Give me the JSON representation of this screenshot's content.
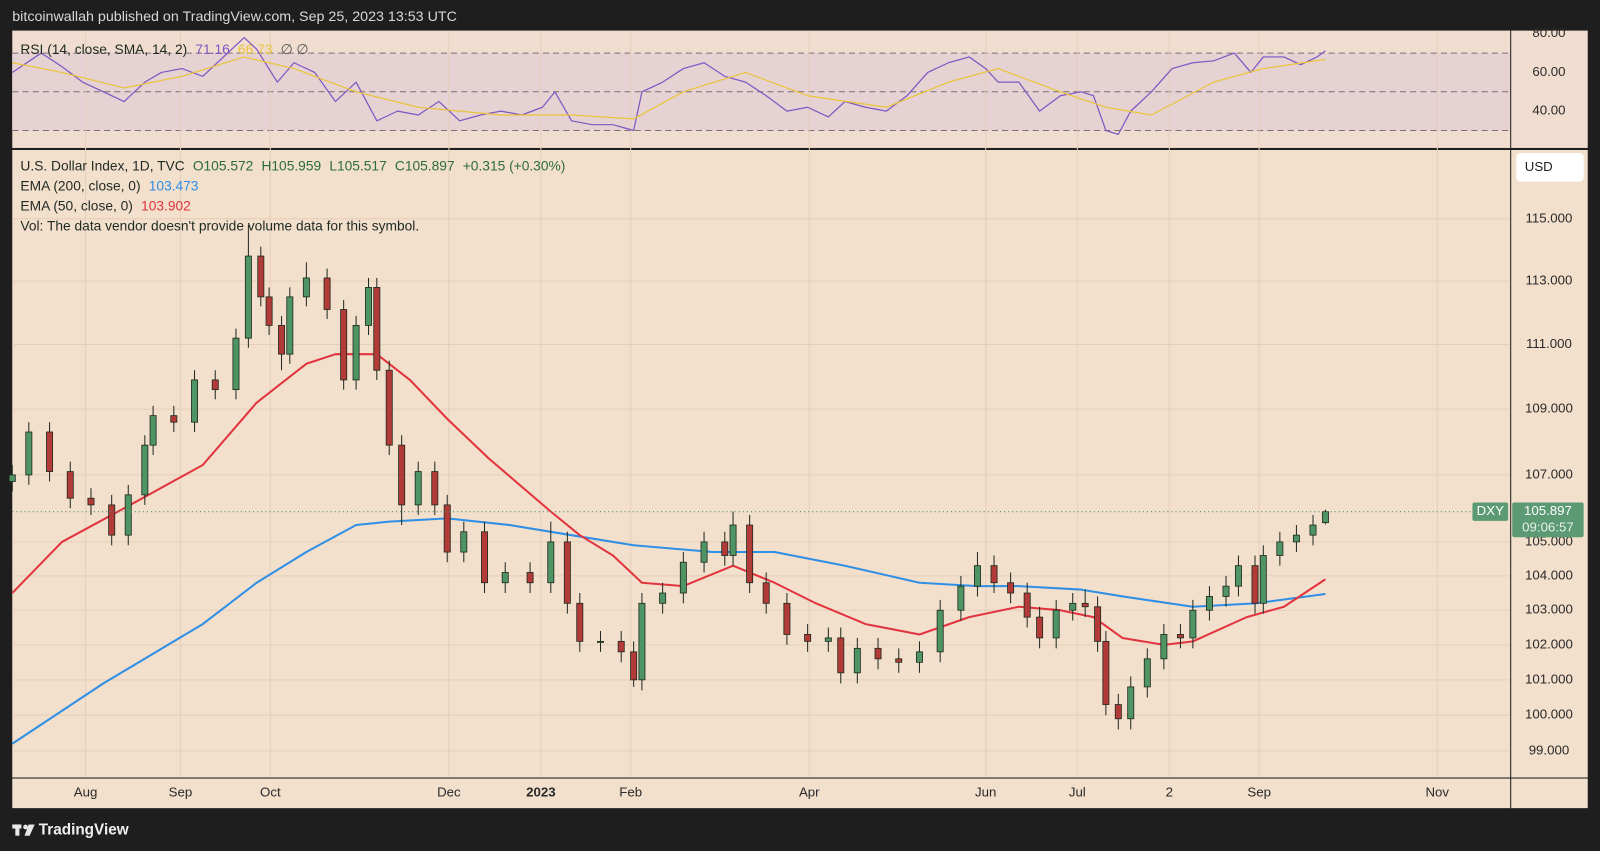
{
  "header": {
    "text": "bitcoinwallah published on TradingView.com, Sep 25, 2023 13:53 UTC"
  },
  "footer": {
    "brand": "TradingView"
  },
  "chart_data": [
    {
      "type": "line",
      "legend_title": "RSI (14, close, SMA, 14, 2)",
      "extra_label": "∅ ∅",
      "ylim": [
        21,
        81.6
      ],
      "yticks": [
        {
          "value": 40,
          "label": "40.00"
        },
        {
          "value": 60,
          "label": "60.00"
        },
        {
          "value": 80,
          "label": "80.00"
        }
      ],
      "hlines": [
        70,
        50,
        30
      ],
      "band_color": "#e6d1d3",
      "xlim": [
        0,
        361.6
      ],
      "series": [
        {
          "value_label": "71.16",
          "color": "#7e57c2",
          "x": [
            0,
            7,
            12,
            17,
            22,
            27,
            32,
            36,
            41,
            46,
            51,
            56,
            59,
            64,
            68,
            73,
            78,
            83,
            88,
            93,
            98,
            103,
            108,
            113,
            118,
            123,
            128,
            131,
            135,
            140,
            145,
            150,
            152,
            157,
            162,
            167,
            172,
            177,
            182,
            187,
            192,
            197,
            201,
            206,
            211,
            216,
            221,
            226,
            231,
            235,
            238,
            243,
            248,
            253,
            258,
            261,
            264,
            267,
            270,
            275,
            280,
            285,
            290,
            295,
            299,
            302,
            307,
            311,
            315,
            317
          ],
          "values": [
            60,
            70,
            63,
            55,
            50,
            45,
            55,
            60,
            62,
            58,
            68,
            78,
            72,
            55,
            65,
            60,
            45,
            55,
            35,
            40,
            38,
            45,
            35,
            38,
            40,
            38,
            42,
            50,
            35,
            33,
            33,
            30,
            50,
            55,
            62,
            65,
            58,
            55,
            48,
            40,
            42,
            37,
            45,
            42,
            40,
            48,
            60,
            65,
            68,
            62,
            55,
            55,
            40,
            48,
            50,
            48,
            30,
            28,
            40,
            50,
            62,
            65,
            66,
            70,
            60,
            68,
            68,
            64,
            68,
            71.16
          ]
        },
        {
          "value_label": "66.73",
          "color": "#e9c53a",
          "x": [
            0,
            12,
            27,
            41,
            56,
            68,
            83,
            98,
            118,
            135,
            150,
            162,
            177,
            192,
            211,
            226,
            238,
            253,
            264,
            275,
            290,
            302,
            317
          ],
          "values": [
            65,
            60,
            52,
            58,
            68,
            62,
            50,
            42,
            38,
            38,
            36,
            50,
            60,
            48,
            42,
            55,
            62,
            50,
            42,
            38,
            55,
            62,
            66.73
          ]
        }
      ]
    },
    {
      "type": "candlestick",
      "title": "U.S. Dollar Index, 1D, TVC",
      "ohlc_labels": [
        "O105.572",
        "H105.959",
        "L105.517",
        "C105.897",
        "+0.315 (+0.30%)"
      ],
      "ohlc_color": "#2b6b3f",
      "note": "Vol: The data vendor doesn't provide volume data for this symbol.",
      "currency": "USD",
      "symbol": "DXY",
      "last_label": "105.897",
      "countdown": "09:06:57",
      "log_scale": true,
      "grid": true,
      "ylim": [
        98.26,
        117.25
      ],
      "yticks": [
        {
          "value": 99,
          "label": "99.000"
        },
        {
          "value": 100,
          "label": "100.000"
        },
        {
          "value": 101,
          "label": "101.000"
        },
        {
          "value": 102,
          "label": "102.000"
        },
        {
          "value": 103,
          "label": "103.000"
        },
        {
          "value": 104,
          "label": "104.000"
        },
        {
          "value": 105,
          "label": "105.000"
        },
        {
          "value": 107,
          "label": "107.000"
        },
        {
          "value": 109,
          "label": "109.000"
        },
        {
          "value": 111,
          "label": "111.000"
        },
        {
          "value": 113,
          "label": "113.000"
        },
        {
          "value": 115,
          "label": "115.000"
        }
      ],
      "xlim": [
        0,
        361.6
      ],
      "xticks": [
        {
          "value": 17.7,
          "label": "Aug"
        },
        {
          "value": 40.6,
          "label": "Sep"
        },
        {
          "value": 62.3,
          "label": "Oct"
        },
        {
          "value": 105.4,
          "label": "Dec"
        },
        {
          "value": 127.6,
          "label": "2023",
          "bold": true
        },
        {
          "value": 149.3,
          "label": "Feb"
        },
        {
          "value": 192.4,
          "label": "Apr"
        },
        {
          "value": 235,
          "label": "Jun"
        },
        {
          "value": 257.1,
          "label": "Jul"
        },
        {
          "value": 279.3,
          "label": "2"
        },
        {
          "value": 301,
          "label": "Sep"
        },
        {
          "value": 344,
          "label": "Nov"
        }
      ],
      "up_color": "#4f9564",
      "down_color": "#b23b38",
      "candles": {
        "x": [
          0,
          4,
          9,
          14,
          19,
          24,
          28,
          32,
          34,
          39,
          44,
          49,
          54,
          57,
          60,
          62,
          65,
          67,
          71,
          76,
          80,
          83,
          86,
          88,
          91,
          94,
          98,
          102,
          105,
          109,
          114,
          119,
          125,
          130,
          134,
          137,
          142,
          147,
          150,
          152,
          157,
          162,
          167,
          172,
          174,
          178,
          182,
          187,
          192,
          197,
          200,
          204,
          209,
          214,
          219,
          224,
          229,
          233,
          237,
          241,
          245,
          248,
          252,
          256,
          259,
          262,
          264,
          267,
          270,
          274,
          278,
          282,
          285,
          289,
          293,
          296,
          300,
          302,
          306,
          310,
          314,
          317
        ],
        "open": [
          106.8,
          107.0,
          108.3,
          107.1,
          106.3,
          106.1,
          105.2,
          106.4,
          107.9,
          108.8,
          108.6,
          109.9,
          109.6,
          111.2,
          113.8,
          112.5,
          111.6,
          110.7,
          112.5,
          113.1,
          112.1,
          109.9,
          111.6,
          112.8,
          110.2,
          107.9,
          106.1,
          107.1,
          106.1,
          104.7,
          105.3,
          103.8,
          104.1,
          103.8,
          105.0,
          103.2,
          102.1,
          102.1,
          101.8,
          101.0,
          103.2,
          103.5,
          104.4,
          105.0,
          104.6,
          105.5,
          103.8,
          103.2,
          102.3,
          102.1,
          102.2,
          101.2,
          101.9,
          101.6,
          101.5,
          101.8,
          103.0,
          103.7,
          104.3,
          103.8,
          103.5,
          102.8,
          102.2,
          103.0,
          103.2,
          103.1,
          102.1,
          100.3,
          99.9,
          100.8,
          101.6,
          102.3,
          102.2,
          103.0,
          103.4,
          103.7,
          104.3,
          103.2,
          104.6,
          105.0,
          105.2,
          105.572
        ],
        "high": [
          107.3,
          108.6,
          108.6,
          107.4,
          106.6,
          106.4,
          106.7,
          108.2,
          109.1,
          109.1,
          110.2,
          110.2,
          111.5,
          114.8,
          114.1,
          112.8,
          111.9,
          112.8,
          113.6,
          113.4,
          112.4,
          111.9,
          113.1,
          113.1,
          110.5,
          108.2,
          107.4,
          107.4,
          106.4,
          105.6,
          105.6,
          104.4,
          104.4,
          105.6,
          105.3,
          103.5,
          102.4,
          102.4,
          102.1,
          103.5,
          103.8,
          104.7,
          105.3,
          105.3,
          105.9,
          105.8,
          104.1,
          103.5,
          102.6,
          102.5,
          102.5,
          102.2,
          102.2,
          101.9,
          102.1,
          103.3,
          104.0,
          104.7,
          104.6,
          104.1,
          103.8,
          103.1,
          103.3,
          103.5,
          103.6,
          103.4,
          102.4,
          100.6,
          101.1,
          101.9,
          102.6,
          102.6,
          103.3,
          103.7,
          104.0,
          104.6,
          104.6,
          104.9,
          105.3,
          105.5,
          105.8,
          105.959
        ],
        "low": [
          106.5,
          106.7,
          106.8,
          106.0,
          105.8,
          104.9,
          104.9,
          106.1,
          107.6,
          108.3,
          108.3,
          109.3,
          109.3,
          110.9,
          112.2,
          111.3,
          110.2,
          110.4,
          112.2,
          111.8,
          109.6,
          109.6,
          111.3,
          109.9,
          107.6,
          105.5,
          105.8,
          105.8,
          104.4,
          104.4,
          103.5,
          103.5,
          103.5,
          103.5,
          102.9,
          101.8,
          101.8,
          101.5,
          100.8,
          100.7,
          102.9,
          103.2,
          104.1,
          104.3,
          104.3,
          103.5,
          102.9,
          102.0,
          101.8,
          101.8,
          100.9,
          100.9,
          101.3,
          101.2,
          101.2,
          101.5,
          102.7,
          103.4,
          103.5,
          103.2,
          102.5,
          101.9,
          101.9,
          102.7,
          102.8,
          101.8,
          100.0,
          99.6,
          99.6,
          100.5,
          101.3,
          101.9,
          101.9,
          102.7,
          103.1,
          103.4,
          102.9,
          102.9,
          104.3,
          104.7,
          104.9,
          105.517
        ],
        "close": [
          107.0,
          108.3,
          107.1,
          106.3,
          106.1,
          105.2,
          106.4,
          107.9,
          108.8,
          108.6,
          109.9,
          109.6,
          111.2,
          113.8,
          112.5,
          111.6,
          110.7,
          112.5,
          113.1,
          112.1,
          109.9,
          111.6,
          112.8,
          110.2,
          107.9,
          106.1,
          107.1,
          106.1,
          104.7,
          105.3,
          103.8,
          104.1,
          103.8,
          105.0,
          103.2,
          102.1,
          102.1,
          101.8,
          101.0,
          103.2,
          103.5,
          104.4,
          105.0,
          104.6,
          105.5,
          103.8,
          103.2,
          102.3,
          102.1,
          102.2,
          101.2,
          101.9,
          101.6,
          101.5,
          101.8,
          103.0,
          103.7,
          104.3,
          103.8,
          103.5,
          102.8,
          102.2,
          103.0,
          103.2,
          103.1,
          102.1,
          100.3,
          99.9,
          100.8,
          101.6,
          102.3,
          102.2,
          103.0,
          103.4,
          103.7,
          104.3,
          103.2,
          104.6,
          105.0,
          105.2,
          105.5,
          105.897
        ]
      },
      "lines": [
        {
          "name": "EMA (200, close, 0)",
          "value_label": "103.473",
          "color": "#2f8fe6",
          "x": [
            0,
            22,
            46,
            59,
            71,
            83,
            91,
            105,
            120,
            135,
            150,
            169,
            184,
            201,
            219,
            233,
            243,
            258,
            268,
            285,
            300,
            317
          ],
          "values": [
            99.2,
            100.9,
            102.6,
            103.8,
            104.7,
            105.5,
            105.6,
            105.7,
            105.5,
            105.2,
            104.9,
            104.7,
            104.7,
            104.3,
            103.8,
            103.7,
            103.7,
            103.6,
            103.4,
            103.1,
            103.2,
            103.473
          ]
        },
        {
          "name": "EMA (50, close, 0)",
          "value_label": "103.902",
          "color": "#e2343f",
          "x": [
            0,
            12,
            27,
            46,
            59,
            71,
            78,
            88,
            96,
            105,
            115,
            130,
            137,
            145,
            152,
            162,
            174,
            184,
            194,
            206,
            219,
            231,
            243,
            253,
            261,
            268,
            278,
            285,
            298,
            307,
            317
          ],
          "values": [
            103.5,
            105.0,
            106.0,
            107.3,
            109.2,
            110.4,
            110.7,
            110.7,
            109.9,
            108.7,
            107.5,
            105.9,
            105.2,
            104.6,
            103.8,
            103.7,
            104.3,
            103.8,
            103.2,
            102.6,
            102.3,
            102.8,
            103.1,
            103.0,
            102.8,
            102.2,
            102.0,
            102.1,
            102.8,
            103.1,
            103.902
          ]
        }
      ]
    }
  ]
}
